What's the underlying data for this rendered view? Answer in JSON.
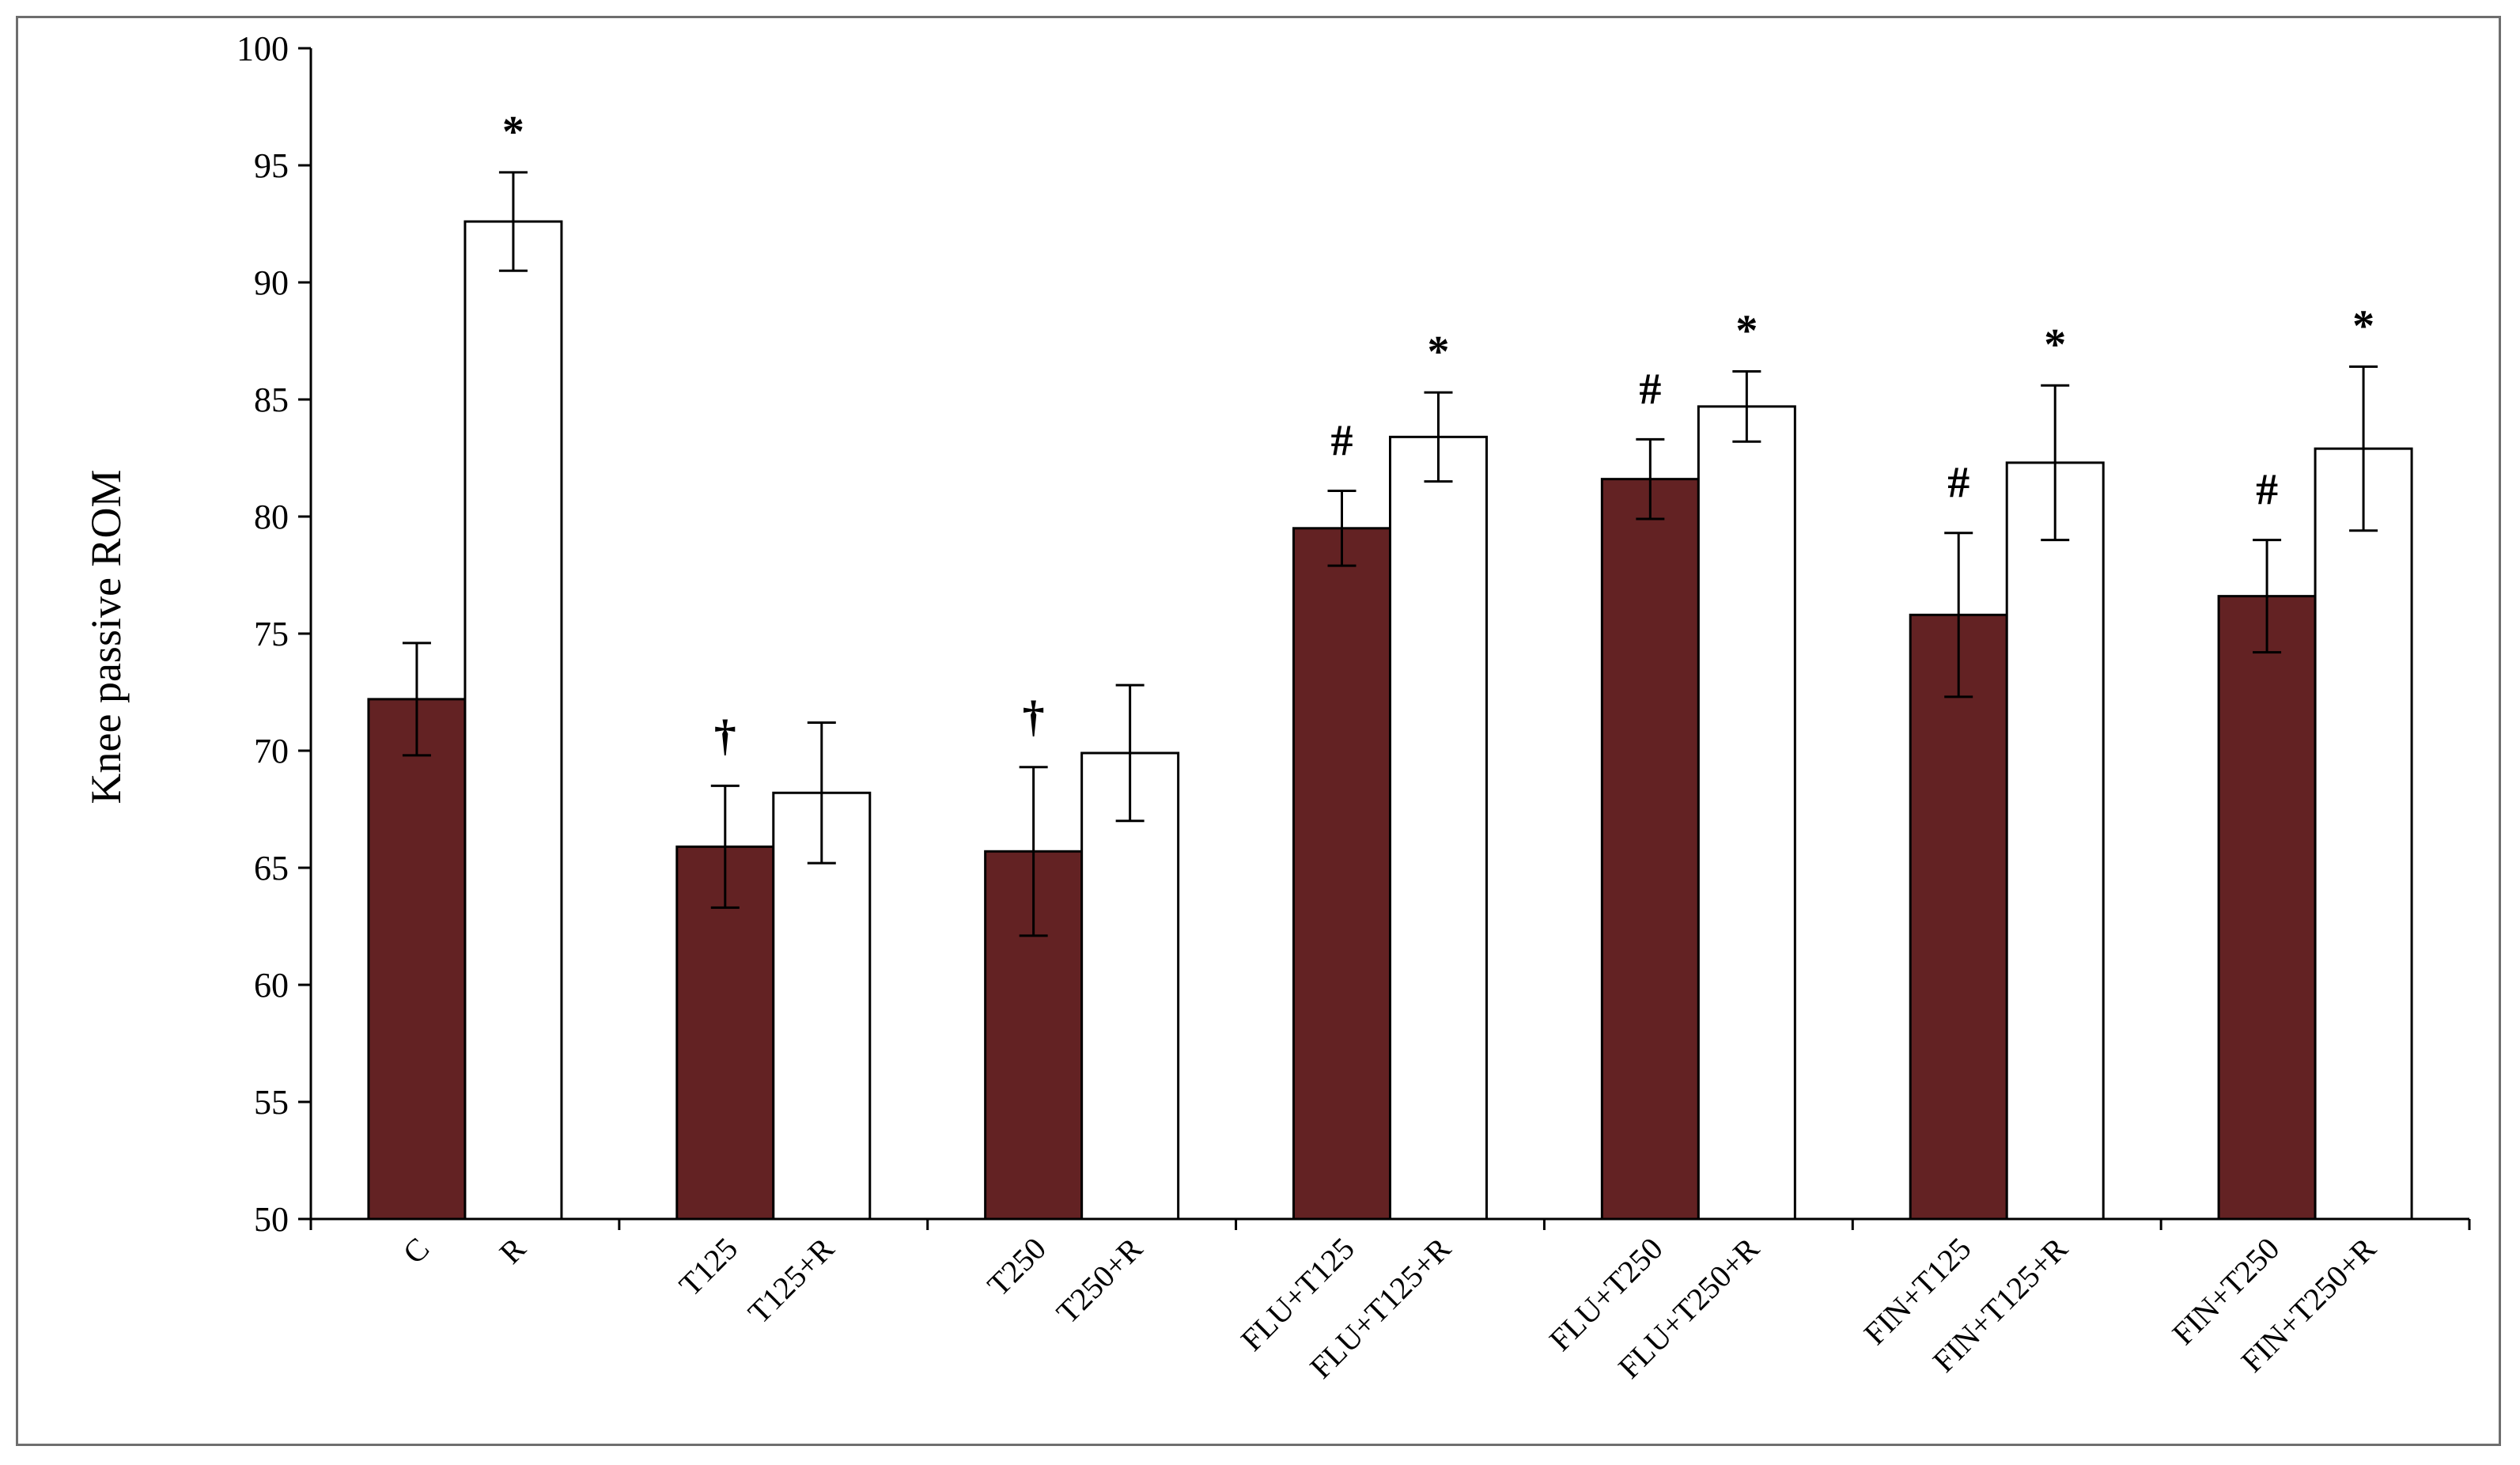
{
  "chart_data": {
    "type": "bar",
    "title": "",
    "xlabel": "",
    "ylabel": "Knee passive ROM",
    "ylim": [
      50,
      100
    ],
    "yticks": [
      50,
      55,
      60,
      65,
      70,
      75,
      80,
      85,
      90,
      95,
      100
    ],
    "grid": false,
    "legend": "none",
    "groups": [
      {
        "bars": [
          {
            "label": "C",
            "value": 72.2,
            "error": 2.4,
            "fill": "dark",
            "marker": ""
          },
          {
            "label": "R",
            "value": 92.6,
            "error": 2.1,
            "fill": "white",
            "marker": "*"
          }
        ]
      },
      {
        "bars": [
          {
            "label": "T125",
            "value": 65.9,
            "error": 2.6,
            "fill": "dark",
            "marker": "†"
          },
          {
            "label": "T125+R",
            "value": 68.2,
            "error": 3.0,
            "fill": "white",
            "marker": ""
          }
        ]
      },
      {
        "bars": [
          {
            "label": "T250",
            "value": 65.7,
            "error": 3.6,
            "fill": "dark",
            "marker": "†"
          },
          {
            "label": "T250+R",
            "value": 69.9,
            "error": 2.9,
            "fill": "white",
            "marker": ""
          }
        ]
      },
      {
        "bars": [
          {
            "label": "FLU+T125",
            "value": 79.5,
            "error": 1.6,
            "fill": "dark",
            "marker": "#"
          },
          {
            "label": "FLU+T125+R",
            "value": 83.4,
            "error": 1.9,
            "fill": "white",
            "marker": "*"
          }
        ]
      },
      {
        "bars": [
          {
            "label": "FLU+T250",
            "value": 81.6,
            "error": 1.7,
            "fill": "dark",
            "marker": "#"
          },
          {
            "label": "FLU+T250+R",
            "value": 84.7,
            "error": 1.5,
            "fill": "white",
            "marker": "*"
          }
        ]
      },
      {
        "bars": [
          {
            "label": "FIN+T125",
            "value": 75.8,
            "error": 3.5,
            "fill": "dark",
            "marker": "#"
          },
          {
            "label": "FIN+T125+R",
            "value": 82.3,
            "error": 3.3,
            "fill": "white",
            "marker": "*"
          }
        ]
      },
      {
        "bars": [
          {
            "label": "FIN+T250",
            "value": 76.6,
            "error": 2.4,
            "fill": "dark",
            "marker": "#"
          },
          {
            "label": "FIN+T250+R",
            "value": 82.9,
            "error": 3.5,
            "fill": "white",
            "marker": "*"
          }
        ]
      }
    ],
    "colors": {
      "dark": "#632223",
      "white": "#ffffff",
      "outline": "#000000"
    }
  }
}
